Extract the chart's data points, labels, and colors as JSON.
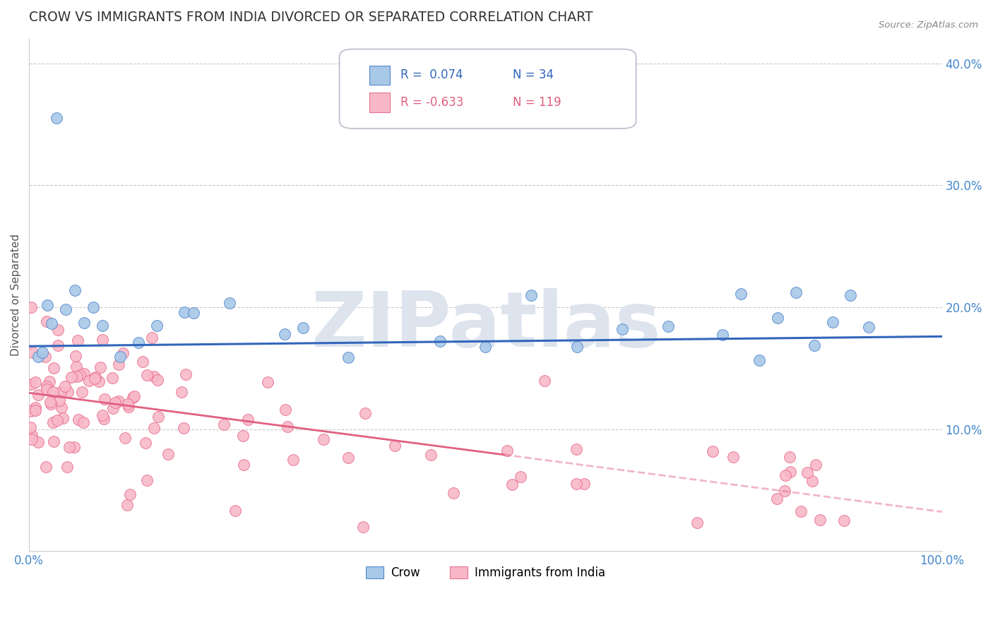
{
  "title": "CROW VS IMMIGRANTS FROM INDIA DIVORCED OR SEPARATED CORRELATION CHART",
  "source": "Source: ZipAtlas.com",
  "ylabel": "Divorced or Separated",
  "xlim": [
    0,
    1.0
  ],
  "ylim": [
    0,
    0.42
  ],
  "yticks": [
    0.1,
    0.2,
    0.3,
    0.4
  ],
  "ytick_labels": [
    "10.0%",
    "20.0%",
    "30.0%",
    "40.0%"
  ],
  "xtick_labels": [
    "0.0%",
    "100.0%"
  ],
  "crow_R": 0.074,
  "crow_N": 34,
  "india_R": -0.633,
  "india_N": 119,
  "crow_color": "#a8c8e8",
  "crow_edge_color": "#5588cc",
  "crow_line_color": "#3366bb",
  "india_color": "#f8b8c8",
  "india_edge_color": "#e87090",
  "india_line_color": "#e06080",
  "watermark_color": "#dde4ee",
  "background_color": "#ffffff",
  "grid_color": "#bbbbbb",
  "title_color": "#333333",
  "tick_color": "#4488cc"
}
